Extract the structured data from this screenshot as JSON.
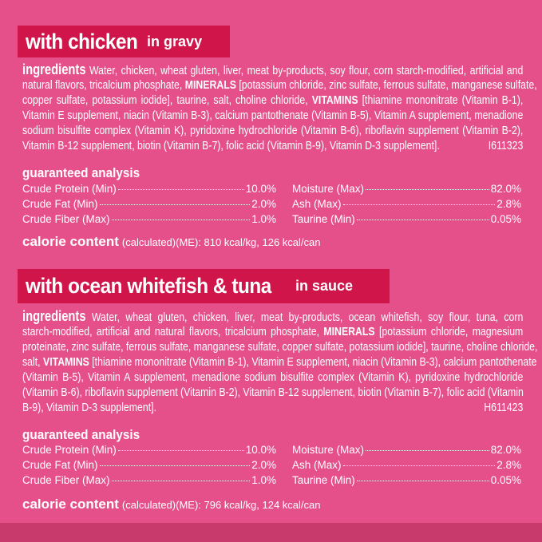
{
  "colors": {
    "background": "#e6508a",
    "banner": "#d0154b",
    "stripe": "#c93a6c",
    "text": "#ffffff"
  },
  "sections": [
    {
      "title": "with chicken",
      "title_suffix": "in gravy",
      "ingredients_label": "ingredients",
      "ingredients_lines": [
        [
          {
            "t": "Water, chicken, wheat gluten, liver, meat by-products, soy flour, corn starch-modified, artificial and"
          }
        ],
        [
          {
            "t": "natural flavors, tricalcium phosphate, "
          },
          {
            "t": "MINERALS",
            "b": true
          },
          {
            "t": " [potassium chloride, zinc sulfate, ferrous sulfate, manganese sulfate,"
          }
        ],
        [
          {
            "t": "copper sulfate, potassium iodide], taurine, salt, choline chloride, "
          },
          {
            "t": "VITAMINS",
            "b": true
          },
          {
            "t": " [thiamine mononitrate (Vitamin B-1),"
          }
        ],
        [
          {
            "t": "Vitamin E supplement, niacin (Vitamin B-3), calcium pantothenate (Vitamin B-5), Vitamin A supplement, menadione"
          }
        ],
        [
          {
            "t": "sodium bisulfite complex (Vitamin K), pyridoxine hydrochloride (Vitamin B-6), riboflavin supplement (Vitamin B-2),"
          }
        ],
        [
          {
            "t": "Vitamin B-12 supplement, biotin (Vitamin B-7), folic acid (Vitamin B-9), Vitamin D-3 supplement]."
          }
        ]
      ],
      "code": "I611323",
      "ga_label": "guaranteed analysis",
      "ga_left": [
        {
          "name": "Crude Protein (Min)",
          "value": "10.0%"
        },
        {
          "name": "Crude Fat (Min)",
          "value": "2.0%"
        },
        {
          "name": "Crude Fiber (Max)",
          "value": "1.0%"
        }
      ],
      "ga_right": [
        {
          "name": "Moisture (Max)",
          "value": "82.0%"
        },
        {
          "name": "Ash (Max)",
          "value": "2.8%"
        },
        {
          "name": "Taurine (Min)",
          "value": "0.05%"
        }
      ],
      "calorie_label": "calorie content",
      "calorie_text": "(calculated)(ME): 810 kcal/kg, 126 kcal/can"
    },
    {
      "title": "with ocean whitefish & tuna",
      "title_suffix": "in sauce",
      "ingredients_label": "ingredients",
      "ingredients_lines": [
        [
          {
            "t": "Water, wheat gluten, chicken, liver, meat by-products, ocean whitefish, soy flour, tuna, corn"
          }
        ],
        [
          {
            "t": "starch-modified, artificial and natural flavors, tricalcium phosphate, "
          },
          {
            "t": "MINERALS",
            "b": true
          },
          {
            "t": " [potassium chloride, magnesium"
          }
        ],
        [
          {
            "t": "proteinate, zinc sulfate, ferrous sulfate, manganese sulfate, copper sulfate, potassium iodide], taurine, choline chloride,"
          }
        ],
        [
          {
            "t": "salt, "
          },
          {
            "t": "VITAMINS",
            "b": true
          },
          {
            "t": " [thiamine mononitrate (Vitamin B-1), Vitamin E supplement, niacin (Vitamin B-3), calcium pantothenate"
          }
        ],
        [
          {
            "t": "(Vitamin B-5), Vitamin A supplement, menadione sodium bisulfite complex (Vitamin K), pyridoxine hydrochloride"
          }
        ],
        [
          {
            "t": "(Vitamin B-6), riboflavin supplement (Vitamin B-2), Vitamin B-12 supplement, biotin (Vitamin B-7), folic acid (Vitamin"
          }
        ],
        [
          {
            "t": "B-9), Vitamin D-3 supplement]."
          }
        ]
      ],
      "code": "H611423",
      "ga_label": "guaranteed analysis",
      "ga_left": [
        {
          "name": "Crude Protein (Min)",
          "value": "10.0%"
        },
        {
          "name": "Crude Fat (Min)",
          "value": "2.0%"
        },
        {
          "name": "Crude Fiber (Max)",
          "value": "1.0%"
        }
      ],
      "ga_right": [
        {
          "name": "Moisture (Max)",
          "value": "82.0%"
        },
        {
          "name": "Ash (Max)",
          "value": "2.8%"
        },
        {
          "name": "Taurine (Min)",
          "value": "0.05%"
        }
      ],
      "calorie_label": "calorie content",
      "calorie_text": "(calculated)(ME): 796 kcal/kg, 124 kcal/can"
    }
  ]
}
